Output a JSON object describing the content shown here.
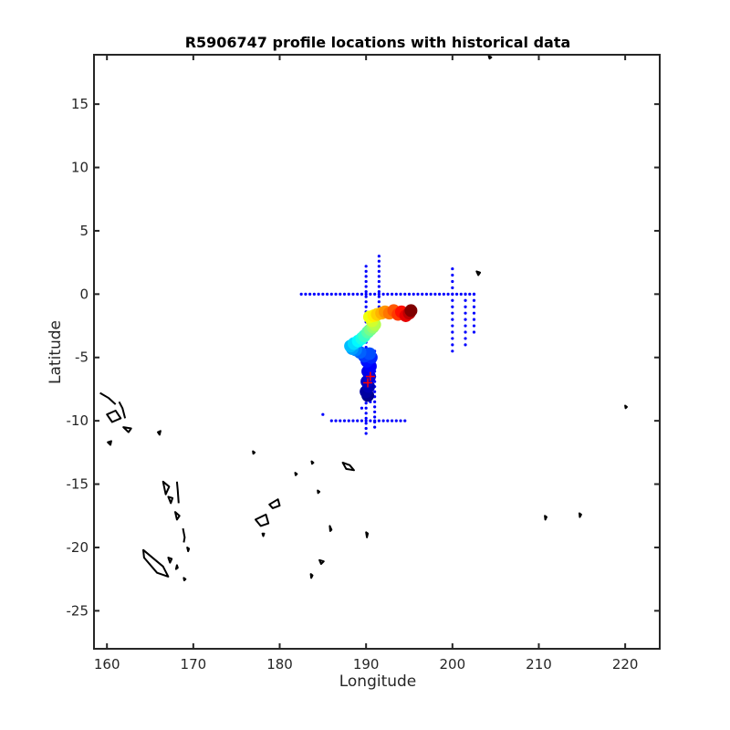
{
  "chart_data": {
    "type": "scatter",
    "title": "R5906747 profile locations with historical data",
    "xlabel": "Longitude",
    "ylabel": "Latitude",
    "xlim": [
      158.5,
      224
    ],
    "ylim": [
      -28,
      18.9
    ],
    "xticks": [
      160,
      170,
      180,
      190,
      200,
      210,
      220
    ],
    "yticks": [
      15,
      10,
      5,
      0,
      -5,
      -10,
      -15,
      -20,
      -25
    ],
    "grid": false,
    "legend": "none",
    "colors": {
      "historical": "#0000ff",
      "coastline": "#000000",
      "profile_cross": "#ff0000",
      "colormap": [
        "#00008f",
        "#0000ff",
        "#0080ff",
        "#00ffff",
        "#80ff80",
        "#ffff00",
        "#ff8000",
        "#ff0000",
        "#800000"
      ]
    },
    "series": [
      {
        "kind": "historical-dots",
        "segments": [
          {
            "orientation": "h",
            "y": 0,
            "x_from": 182.5,
            "x_to": 202.5,
            "step": 0.5
          },
          {
            "orientation": "v",
            "x": 190,
            "y_from": -11,
            "y_to": 2.5,
            "step": 0.4
          },
          {
            "orientation": "v",
            "x": 191.5,
            "y_from": -1,
            "y_to": 3,
            "step": 0.4
          },
          {
            "orientation": "v",
            "x": 191,
            "y_from": -10.5,
            "y_to": -4.5,
            "step": 0.4
          },
          {
            "orientation": "h",
            "y": -10,
            "x_from": 186,
            "x_to": 194.5,
            "step": 0.5
          },
          {
            "orientation": "v",
            "x": 200,
            "y_from": -4.5,
            "y_to": 2,
            "step": 0.5
          },
          {
            "orientation": "v",
            "x": 201.5,
            "y_from": -4,
            "y_to": 0,
            "step": 0.5
          },
          {
            "orientation": "v",
            "x": 202.5,
            "y_from": -3,
            "y_to": 0,
            "step": 0.5
          }
        ],
        "points": [
          [
            185,
            -9.5
          ],
          [
            189.5,
            -9
          ],
          [
            190.5,
            -8.5
          ]
        ]
      },
      {
        "kind": "profile-track",
        "points": [
          [
            190.2,
            -8.0,
            0.0
          ],
          [
            190.0,
            -7.7,
            0.02
          ],
          [
            190.3,
            -7.3,
            0.04
          ],
          [
            190.1,
            -6.9,
            0.06
          ],
          [
            190.4,
            -6.5,
            0.08
          ],
          [
            190.2,
            -6.1,
            0.1
          ],
          [
            190.5,
            -5.7,
            0.12
          ],
          [
            190.1,
            -5.3,
            0.14
          ],
          [
            190.6,
            -5.0,
            0.16
          ],
          [
            189.8,
            -4.9,
            0.18
          ],
          [
            190.4,
            -4.7,
            0.2
          ],
          [
            189.3,
            -4.6,
            0.22
          ],
          [
            188.8,
            -4.4,
            0.25
          ],
          [
            188.4,
            -4.3,
            0.28
          ],
          [
            188.2,
            -4.1,
            0.31
          ],
          [
            188.6,
            -3.9,
            0.34
          ],
          [
            189.1,
            -3.7,
            0.37
          ],
          [
            189.5,
            -3.5,
            0.4
          ],
          [
            189.8,
            -3.3,
            0.43
          ],
          [
            190.2,
            -3.0,
            0.46
          ],
          [
            190.5,
            -2.8,
            0.49
          ],
          [
            190.8,
            -2.6,
            0.52
          ],
          [
            191.0,
            -2.4,
            0.55
          ],
          [
            190.7,
            -2.1,
            0.58
          ],
          [
            190.4,
            -1.8,
            0.61
          ],
          [
            190.9,
            -1.7,
            0.64
          ],
          [
            191.3,
            -1.6,
            0.67
          ],
          [
            191.8,
            -1.5,
            0.7
          ],
          [
            192.2,
            -1.4,
            0.73
          ],
          [
            192.7,
            -1.5,
            0.76
          ],
          [
            193.2,
            -1.3,
            0.79
          ],
          [
            193.7,
            -1.6,
            0.82
          ],
          [
            194.1,
            -1.4,
            0.86
          ],
          [
            194.6,
            -1.7,
            0.9
          ],
          [
            195.0,
            -1.5,
            0.94
          ],
          [
            195.2,
            -1.3,
            1.0
          ]
        ]
      },
      {
        "kind": "profile-cross",
        "points": [
          [
            190.2,
            -7.0
          ],
          [
            190.5,
            -6.5
          ]
        ]
      },
      {
        "kind": "coastline",
        "shapes": [
          {
            "type": "polyline",
            "points": [
              [
                159.2,
                -7.8
              ],
              [
                160.2,
                -8.2
              ],
              [
                161,
                -8.7
              ]
            ]
          },
          {
            "type": "polygon",
            "points": [
              [
                160,
                -9.5
              ],
              [
                161,
                -9.2
              ],
              [
                161.6,
                -9.8
              ],
              [
                160.6,
                -10.1
              ]
            ]
          },
          {
            "type": "polyline",
            "points": [
              [
                161.4,
                -8.5
              ],
              [
                161.8,
                -9
              ],
              [
                162.1,
                -9.8
              ]
            ]
          },
          {
            "type": "polygon",
            "points": [
              [
                161.9,
                -10.5
              ],
              [
                162.8,
                -10.6
              ],
              [
                162.5,
                -10.9
              ]
            ]
          },
          {
            "type": "polygon",
            "points": [
              [
                160.1,
                -11.7
              ],
              [
                160.5,
                -11.6
              ],
              [
                160.4,
                -11.9
              ]
            ]
          },
          {
            "type": "polygon",
            "points": [
              [
                165.9,
                -10.9
              ],
              [
                166.2,
                -10.8
              ],
              [
                166.1,
                -11.1
              ]
            ]
          },
          {
            "type": "polygon",
            "points": [
              [
                166.5,
                -14.8
              ],
              [
                167.2,
                -15.2
              ],
              [
                166.8,
                -15.8
              ]
            ]
          },
          {
            "type": "polygon",
            "points": [
              [
                167.1,
                -16
              ],
              [
                167.6,
                -16.1
              ],
              [
                167.4,
                -16.5
              ]
            ]
          },
          {
            "type": "polyline",
            "points": [
              [
                168.1,
                -14.8
              ],
              [
                168.2,
                -15.5
              ],
              [
                168.3,
                -16.5
              ]
            ]
          },
          {
            "type": "polygon",
            "points": [
              [
                167.9,
                -17.2
              ],
              [
                168.4,
                -17.5
              ],
              [
                168.1,
                -17.8
              ]
            ]
          },
          {
            "type": "polyline",
            "points": [
              [
                168.8,
                -18.5
              ],
              [
                169,
                -19.2
              ],
              [
                168.9,
                -19.6
              ]
            ]
          },
          {
            "type": "polygon",
            "points": [
              [
                169.3,
                -20
              ],
              [
                169.5,
                -20.1
              ],
              [
                169.4,
                -20.3
              ]
            ]
          },
          {
            "type": "polygon",
            "points": [
              [
                164.2,
                -20.2
              ],
              [
                166.5,
                -21.5
              ],
              [
                167.1,
                -22.3
              ],
              [
                165.8,
                -22
              ],
              [
                164.3,
                -20.8
              ]
            ]
          },
          {
            "type": "polygon",
            "points": [
              [
                167.1,
                -20.8
              ],
              [
                167.5,
                -20.9
              ],
              [
                167.3,
                -21.2
              ]
            ]
          },
          {
            "type": "polygon",
            "points": [
              [
                168.1,
                -21.4
              ],
              [
                168.2,
                -21.6
              ],
              [
                168.0,
                -21.7
              ]
            ]
          },
          {
            "type": "polygon",
            "points": [
              [
                168.9,
                -22.4
              ],
              [
                169.1,
                -22.5
              ],
              [
                168.95,
                -22.6
              ]
            ]
          },
          {
            "type": "polygon",
            "points": [
              [
                177.2,
                -17.8
              ],
              [
                178.4,
                -17.4
              ],
              [
                178.7,
                -18.1
              ],
              [
                177.8,
                -18.3
              ]
            ]
          },
          {
            "type": "polygon",
            "points": [
              [
                178.8,
                -16.6
              ],
              [
                179.8,
                -16.2
              ],
              [
                180,
                -16.7
              ],
              [
                179.2,
                -16.9
              ]
            ]
          },
          {
            "type": "polygon",
            "points": [
              [
                178,
                -18.9
              ],
              [
                178.2,
                -18.9
              ],
              [
                178.1,
                -19.1
              ]
            ]
          },
          {
            "type": "polygon",
            "points": [
              [
                176.9,
                -12.4
              ],
              [
                177.1,
                -12.5
              ],
              [
                176.95,
                -12.6
              ]
            ]
          },
          {
            "type": "polygon",
            "points": [
              [
                181.8,
                -14.1
              ],
              [
                182,
                -14.2
              ],
              [
                181.85,
                -14.3
              ]
            ]
          },
          {
            "type": "polygon",
            "points": [
              [
                183.7,
                -13.2
              ],
              [
                183.9,
                -13.3
              ],
              [
                183.75,
                -13.4
              ]
            ]
          },
          {
            "type": "polygon",
            "points": [
              [
                184.4,
                -15.5
              ],
              [
                184.6,
                -15.6
              ],
              [
                184.45,
                -15.7
              ]
            ]
          },
          {
            "type": "polygon",
            "points": [
              [
                187.3,
                -13.3
              ],
              [
                188.1,
                -13.5
              ],
              [
                188.6,
                -13.9
              ],
              [
                187.7,
                -13.8
              ]
            ]
          },
          {
            "type": "polygon",
            "points": [
              [
                185.8,
                -18.3
              ],
              [
                186,
                -18.6
              ],
              [
                185.85,
                -18.7
              ]
            ]
          },
          {
            "type": "polygon",
            "points": [
              [
                184.6,
                -21
              ],
              [
                185.1,
                -21.1
              ],
              [
                184.8,
                -21.3
              ]
            ]
          },
          {
            "type": "polygon",
            "points": [
              [
                183.6,
                -22.1
              ],
              [
                183.8,
                -22.2
              ],
              [
                183.65,
                -22.4
              ]
            ]
          },
          {
            "type": "polygon",
            "points": [
              [
                190,
                -18.8
              ],
              [
                190.2,
                -18.9
              ],
              [
                190.1,
                -19.2
              ]
            ]
          },
          {
            "type": "polygon",
            "points": [
              [
                202.8,
                1.8
              ],
              [
                203.2,
                1.7
              ],
              [
                203.0,
                1.5
              ]
            ]
          },
          {
            "type": "polygon",
            "points": [
              [
                204.2,
                18.8
              ],
              [
                204.5,
                18.7
              ],
              [
                204.3,
                18.6
              ]
            ]
          },
          {
            "type": "polygon",
            "points": [
              [
                220,
                -8.8
              ],
              [
                220.2,
                -8.9
              ],
              [
                220.05,
                -9.0
              ]
            ]
          },
          {
            "type": "polygon",
            "points": [
              [
                210.7,
                -17.5
              ],
              [
                210.9,
                -17.6
              ],
              [
                210.75,
                -17.8
              ]
            ]
          },
          {
            "type": "polygon",
            "points": [
              [
                214.7,
                -17.3
              ],
              [
                214.9,
                -17.4
              ],
              [
                214.75,
                -17.6
              ]
            ]
          }
        ]
      }
    ]
  }
}
